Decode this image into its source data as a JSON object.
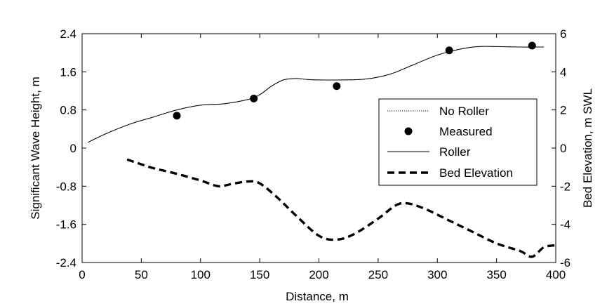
{
  "chart_data": {
    "type": "line",
    "xlabel": "Distance, m",
    "ylabel_left": "Significant Wave Height, m",
    "ylabel_right": "Bed Elevation, m SWL",
    "xlim": [
      0,
      400
    ],
    "ylim_left": [
      -2.4,
      2.4
    ],
    "ylim_right": [
      -6,
      6
    ],
    "x_ticks": [
      "0",
      "50",
      "100",
      "150",
      "200",
      "250",
      "300",
      "350",
      "400"
    ],
    "y_ticks_left": [
      "2.4",
      "1.6",
      "0.8",
      "0",
      "-0.8",
      "-1.6",
      "-2.4"
    ],
    "y_ticks_right": [
      "6",
      "4",
      "2",
      "0",
      "-2",
      "-4",
      "-6"
    ],
    "grid": false,
    "legend_position": "right",
    "series": [
      {
        "name": "No Roller",
        "axis": "left",
        "style": "dotted",
        "x": [
          5,
          20,
          40,
          60,
          80,
          100,
          120,
          140,
          150,
          160,
          170,
          180,
          190,
          200,
          220,
          240,
          260,
          280,
          300,
          320,
          335,
          350,
          370,
          390
        ],
        "y": [
          0.12,
          0.3,
          0.5,
          0.65,
          0.8,
          0.9,
          0.93,
          1.02,
          1.12,
          1.3,
          1.43,
          1.46,
          1.44,
          1.43,
          1.43,
          1.45,
          1.55,
          1.75,
          1.95,
          2.08,
          2.13,
          2.13,
          2.12,
          2.12
        ]
      },
      {
        "name": "Measured",
        "axis": "left",
        "style": "markers",
        "x": [
          80,
          145,
          215,
          310,
          380
        ],
        "y": [
          0.68,
          1.04,
          1.3,
          2.05,
          2.15
        ]
      },
      {
        "name": "Roller",
        "axis": "left",
        "style": "solid",
        "x": [
          5,
          20,
          40,
          60,
          80,
          100,
          120,
          140,
          150,
          160,
          170,
          180,
          190,
          200,
          220,
          240,
          260,
          280,
          300,
          320,
          335,
          350,
          370,
          390
        ],
        "y": [
          0.12,
          0.3,
          0.5,
          0.65,
          0.8,
          0.9,
          0.93,
          1.02,
          1.12,
          1.3,
          1.43,
          1.46,
          1.44,
          1.43,
          1.43,
          1.45,
          1.55,
          1.75,
          1.95,
          2.08,
          2.13,
          2.13,
          2.12,
          2.12
        ]
      },
      {
        "name": "Bed Elevation",
        "axis": "right",
        "style": "dashed",
        "x": [
          38,
          50,
          60,
          80,
          100,
          115,
          125,
          140,
          150,
          165,
          180,
          200,
          215,
          230,
          250,
          265,
          275,
          290,
          310,
          330,
          350,
          370,
          380,
          390,
          400
        ],
        "y": [
          -0.6,
          -0.85,
          -1.05,
          -1.35,
          -1.7,
          -2.0,
          -1.9,
          -1.75,
          -1.85,
          -2.6,
          -3.5,
          -4.6,
          -4.8,
          -4.5,
          -3.7,
          -3.0,
          -2.9,
          -3.2,
          -3.8,
          -4.4,
          -5.0,
          -5.4,
          -5.7,
          -5.2,
          -5.1
        ]
      }
    ]
  }
}
